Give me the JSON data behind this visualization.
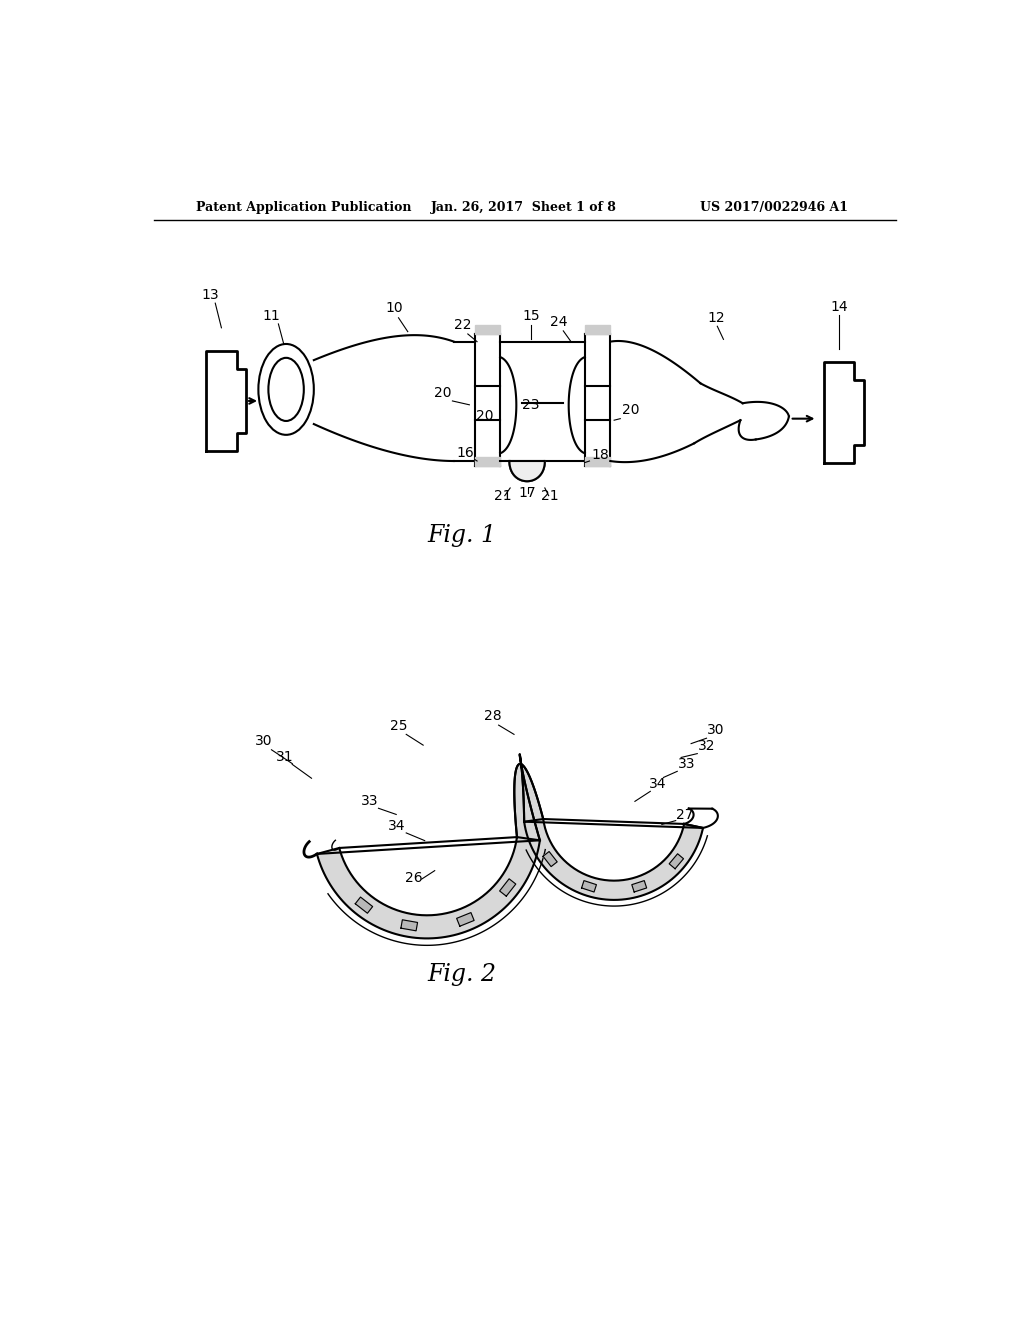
{
  "bg_color": "#ffffff",
  "line_color": "#000000",
  "header_left": "Patent Application Publication",
  "header_mid": "Jan. 26, 2017  Sheet 1 of 8",
  "header_right": "US 2017/0022946 A1",
  "fig1_label": "Fig. 1",
  "fig2_label": "Fig. 2"
}
